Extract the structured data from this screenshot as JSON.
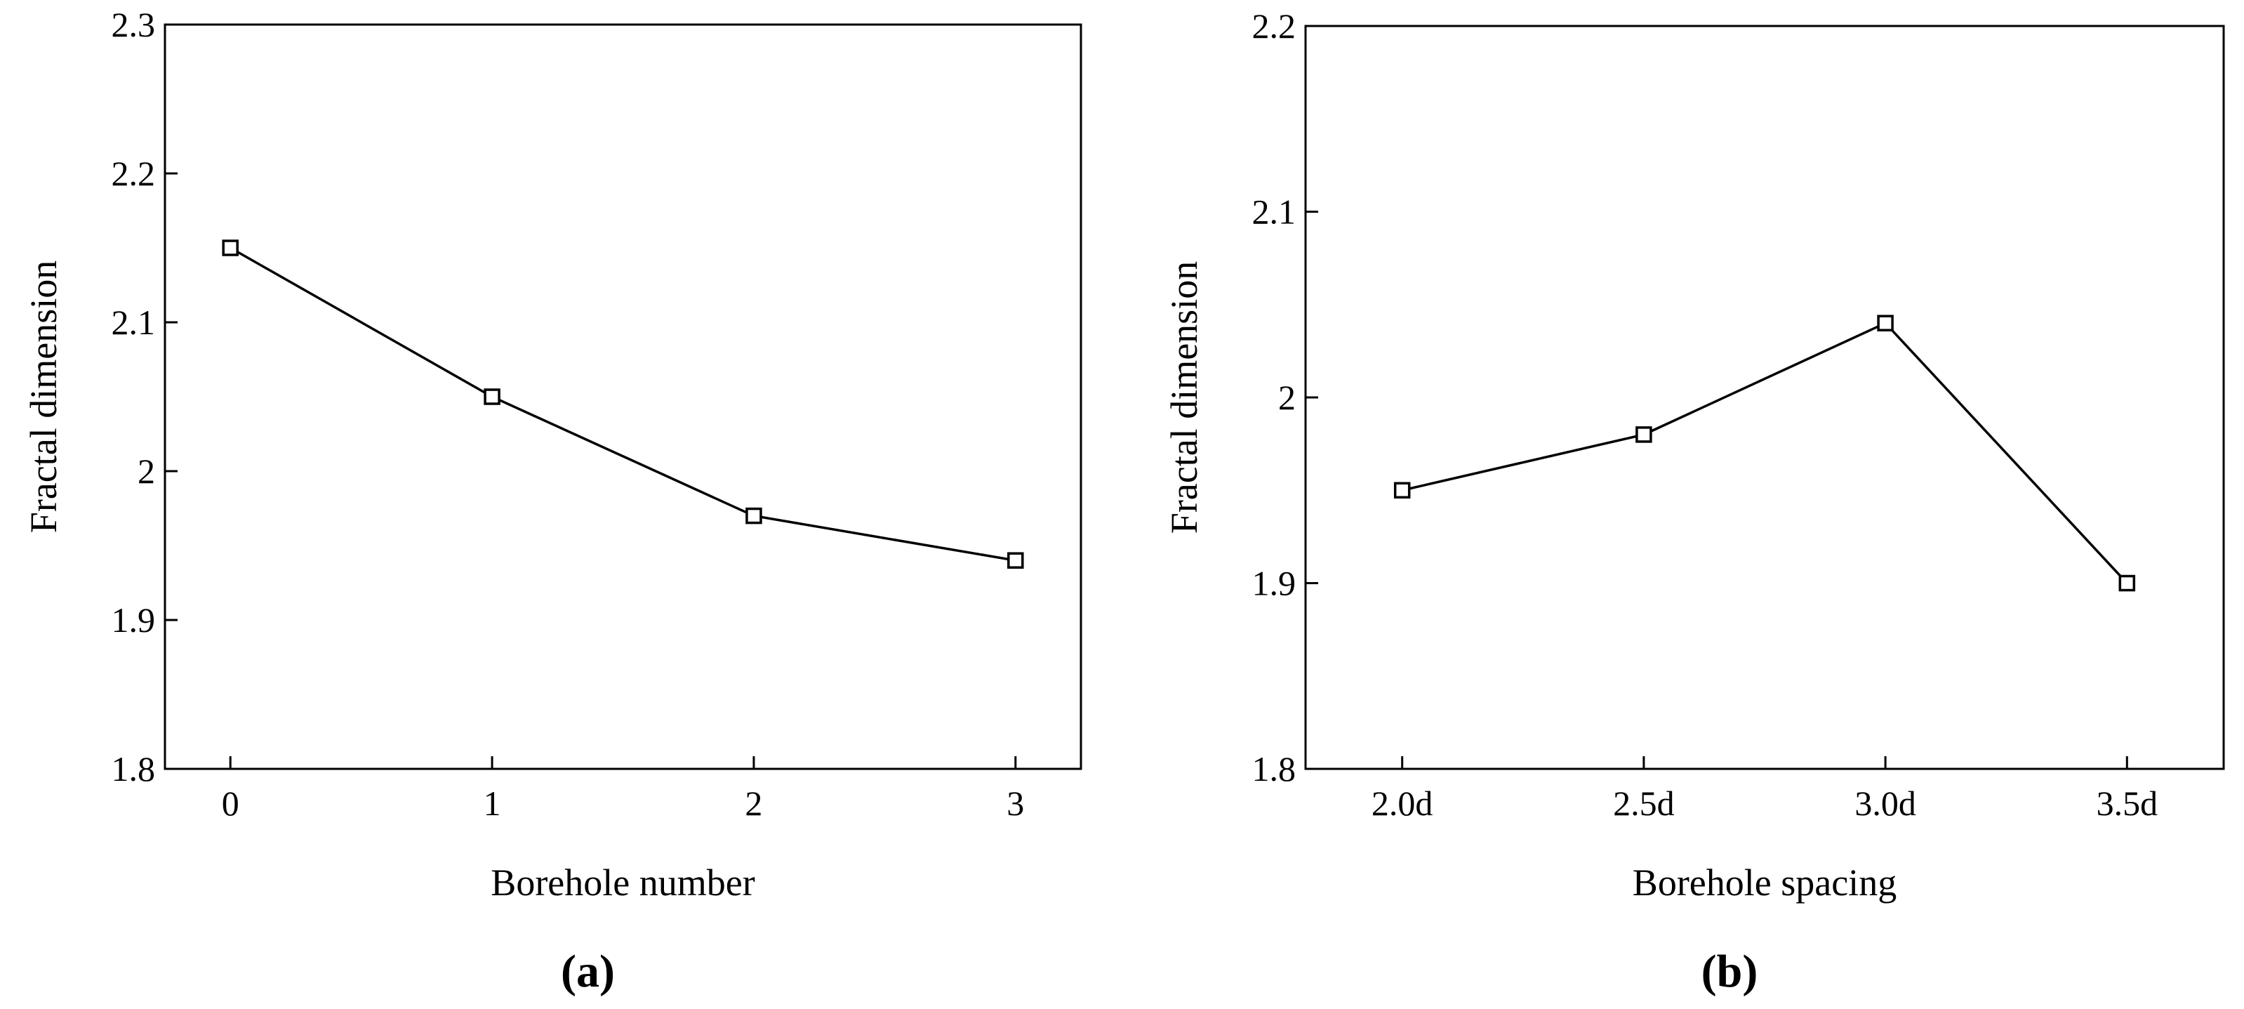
{
  "chart_data": [
    {
      "type": "line",
      "caption": "(a)",
      "xlabel": "Borehole number",
      "ylabel": "Fractal dimension",
      "x": [
        0,
        1,
        2,
        3
      ],
      "series": [
        {
          "values": [
            2.15,
            2.05,
            1.97,
            1.94
          ],
          "color": "#000000"
        }
      ],
      "xlim": [
        -0.25,
        3.25
      ],
      "xticks": [
        0,
        1,
        2,
        3
      ],
      "ylim": [
        1.8,
        2.3
      ],
      "yticks": [
        1.8,
        1.9,
        2.0,
        2.1,
        2.2,
        2.3
      ]
    },
    {
      "type": "line",
      "caption": "(b)",
      "xlabel": "Borehole spacing",
      "ylabel": "Fractal dimension",
      "categories": [
        "2.0d",
        "2.5d",
        "3.0d",
        "3.5d"
      ],
      "series": [
        {
          "values": [
            1.95,
            1.98,
            2.04,
            1.9
          ],
          "color": "#000000"
        }
      ],
      "ylim": [
        1.8,
        2.2
      ],
      "yticks": [
        1.8,
        1.9,
        2.0,
        2.1,
        2.2
      ]
    }
  ]
}
